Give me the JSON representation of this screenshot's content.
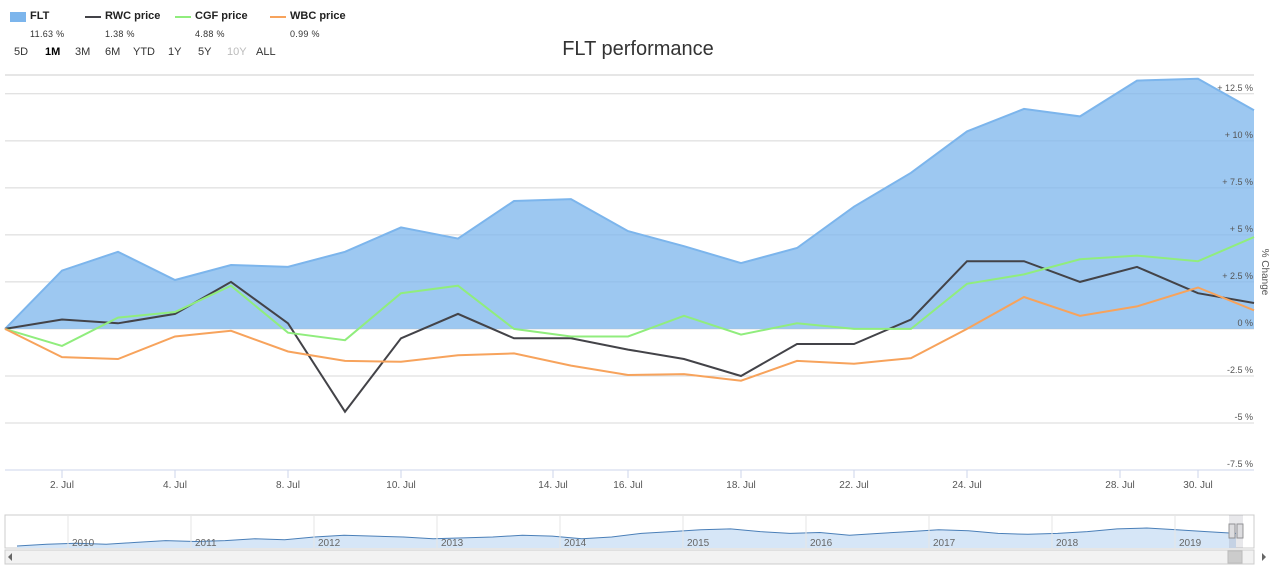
{
  "legend": [
    {
      "name": "FLT",
      "value": "11.63 %",
      "color": "#7cb5ec",
      "kind": "area"
    },
    {
      "name": "RWC price",
      "value": "1.38 %",
      "color": "#434348",
      "kind": "line"
    },
    {
      "name": "CGF price",
      "value": "4.88 %",
      "color": "#90ed7d",
      "kind": "line"
    },
    {
      "name": "WBC price",
      "value": "0.99 %",
      "color": "#f7a35c",
      "kind": "line"
    }
  ],
  "ranges": [
    {
      "label": "5D",
      "state": "normal"
    },
    {
      "label": "1M",
      "state": "active"
    },
    {
      "label": "3M",
      "state": "normal"
    },
    {
      "label": "6M",
      "state": "normal"
    },
    {
      "label": "YTD",
      "state": "normal"
    },
    {
      "label": "1Y",
      "state": "normal"
    },
    {
      "label": "5Y",
      "state": "normal"
    },
    {
      "label": "10Y",
      "state": "disabled"
    },
    {
      "label": "ALL",
      "state": "normal"
    }
  ],
  "chart_data": {
    "type": "area",
    "title": "FLT performance",
    "ylabel": "% Change",
    "ylim": [
      -7.5,
      13.5
    ],
    "yticks": [
      12.5,
      10,
      7.5,
      5,
      2.5,
      0,
      -2.5,
      -5,
      -7.5
    ],
    "ytick_labels": [
      "+ 12.5 %",
      "+ 10 %",
      "+ 7.5 %",
      "+ 5 %",
      "+ 2.5 %",
      "0 %",
      "-2.5 %",
      "-5 %",
      "-7.5 %"
    ],
    "x": [
      "1 Jul",
      "2 Jul",
      "3 Jul",
      "4 Jul",
      "5 Jul",
      "8 Jul",
      "9 Jul",
      "10 Jul",
      "11 Jul",
      "12 Jul",
      "14 Jul",
      "16 Jul",
      "17 Jul",
      "18 Jul",
      "19 Jul",
      "22 Jul",
      "23 Jul",
      "24 Jul",
      "25 Jul",
      "26 Jul",
      "28 Jul",
      "30 Jul",
      "31 Jul"
    ],
    "x_ticks": [
      "2. Jul",
      "4. Jul",
      "8. Jul",
      "10. Jul",
      "14. Jul",
      "16. Jul",
      "18. Jul",
      "22. Jul",
      "24. Jul",
      "28. Jul",
      "30. Jul"
    ],
    "grid": true,
    "legend_position": "top-left",
    "series": [
      {
        "name": "FLT",
        "type": "area",
        "color": "#7cb5ec",
        "values": [
          0,
          3.1,
          4.1,
          2.6,
          3.4,
          3.3,
          4.1,
          5.4,
          4.8,
          6.8,
          6.9,
          5.2,
          4.4,
          3.5,
          4.3,
          6.5,
          8.3,
          10.5,
          11.7,
          11.3,
          13.2,
          13.3,
          11.63
        ]
      },
      {
        "name": "RWC price",
        "type": "line",
        "color": "#434348",
        "values": [
          0,
          0.5,
          0.3,
          0.8,
          2.5,
          0.3,
          -4.4,
          -0.5,
          0.8,
          -0.5,
          -0.5,
          -1.1,
          -1.6,
          -2.5,
          -0.8,
          -0.8,
          0.5,
          3.6,
          3.6,
          2.5,
          3.3,
          1.9,
          1.38
        ]
      },
      {
        "name": "CGF price",
        "type": "line",
        "color": "#90ed7d",
        "values": [
          0,
          -0.9,
          0.6,
          0.9,
          2.3,
          -0.2,
          -0.6,
          1.9,
          2.3,
          0,
          -0.4,
          -0.4,
          0.7,
          -0.3,
          0.3,
          0,
          0,
          2.4,
          2.9,
          3.7,
          3.9,
          3.6,
          4.88
        ]
      },
      {
        "name": "WBC price",
        "type": "line",
        "color": "#f7a35c",
        "values": [
          0,
          -1.5,
          -1.6,
          -0.4,
          -0.1,
          -1.2,
          -1.7,
          -1.75,
          -1.4,
          -1.3,
          -1.95,
          -2.45,
          -2.4,
          -2.75,
          -1.7,
          -1.85,
          -1.55,
          0,
          1.7,
          0.7,
          1.2,
          2.2,
          0.99
        ]
      }
    ]
  },
  "navigator": {
    "years": [
      "2010",
      "2011",
      "2012",
      "2013",
      "2014",
      "2015",
      "2016",
      "2017",
      "2018",
      "2019"
    ],
    "series_values": [
      2,
      3,
      3.5,
      3,
      4,
      5,
      4.5,
      5,
      6,
      5.5,
      7,
      8,
      7.5,
      7,
      6,
      6.5,
      7,
      8,
      7.5,
      6,
      7,
      9,
      10,
      11,
      11.5,
      10,
      9,
      9.5,
      8,
      9,
      10,
      11,
      10.5,
      9,
      8.5,
      9,
      10,
      11.5,
      12,
      11,
      10,
      9
    ]
  }
}
